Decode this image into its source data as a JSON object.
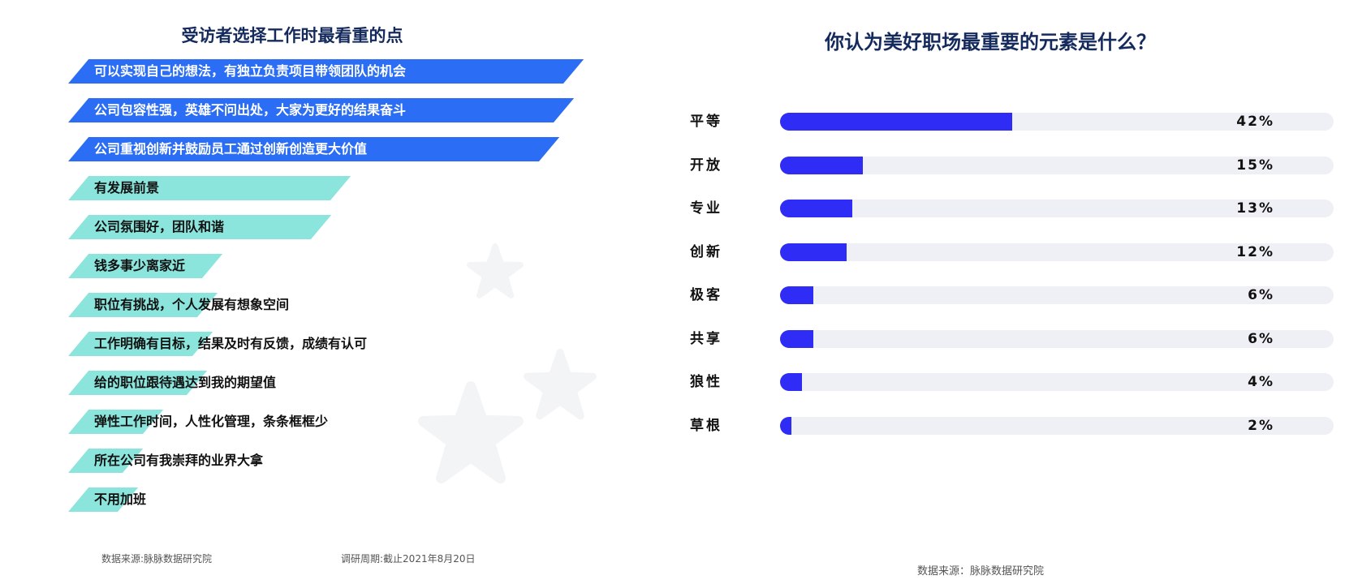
{
  "chart_data": [
    {
      "type": "bar",
      "title": "受访者选择工作时最看重的点",
      "categories": [
        "可以实现自己的想法，有独立负责项目带领团队的机会",
        "公司包容性强，英雄不问出处，大家为更好的结果奋斗",
        "公司重视创新并鼓励员工通过创新创造更大价值",
        "有发展前景",
        "公司氛围好，团队和谐",
        "钱多事少离家近",
        "职位有挑战，个人发展有想象空间",
        "工作明确有目标，结果及时有反馈，成绩有认可",
        "给的职位跟待遇达到我的期望值",
        "弹性工作时间，人性化管理，条条框框少",
        "所在公司有我崇拜的业界大拿",
        "不用加班"
      ],
      "values": [
        100,
        98,
        95,
        53,
        49,
        27,
        26,
        25,
        24,
        15,
        11,
        10
      ],
      "highlight_count": 3,
      "colors": {
        "highlight": "#2b6ef5",
        "normal": "#8be5dc"
      },
      "source": "数据来源:脉脉数据研究院",
      "period": "调研周期:截止2021年8月20日"
    },
    {
      "type": "bar",
      "title": "你认为美好职场最重要的元素是什么？",
      "categories": [
        "平等",
        "开放",
        "专业",
        "创新",
        "极客",
        "共享",
        "狼性",
        "草根"
      ],
      "values": [
        42,
        15,
        13,
        12,
        6,
        6,
        4,
        2
      ],
      "value_labels": [
        "42%",
        "15%",
        "13%",
        "12%",
        "6%",
        "6%",
        "4%",
        "2%"
      ],
      "xlim": [
        0,
        100
      ],
      "colors": {
        "fill": "#2f2cf5",
        "track": "#eef0f5"
      },
      "source": "数据来源：脉脉数据研究院"
    }
  ]
}
